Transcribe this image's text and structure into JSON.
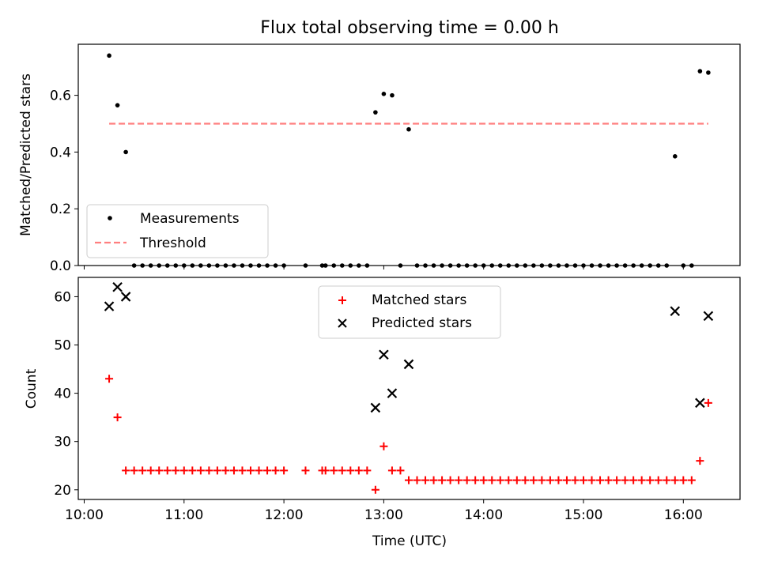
{
  "figure": {
    "title": "Flux total observing time = 0.00 h"
  },
  "x_ticks": [
    "10:00",
    "11:00",
    "12:00",
    "13:00",
    "14:00",
    "15:00",
    "16:00"
  ],
  "chart_data": [
    {
      "type": "scatter",
      "ylabel": "Matched/Predicted stars",
      "ylim": [
        0.0,
        0.78
      ],
      "yticks": [
        "0.0",
        "0.2",
        "0.4",
        "0.6"
      ],
      "legend": "lower-left",
      "series": [
        {
          "name": "Measurements",
          "marker": "dot",
          "color": "#000000",
          "points": [
            [
              "10:15",
              0.74
            ],
            [
              "10:20",
              0.565
            ],
            [
              "10:25",
              0.4
            ],
            [
              "10:30",
              0.0
            ],
            [
              "10:35",
              0.0
            ],
            [
              "10:40",
              0.0
            ],
            [
              "10:45",
              0.0
            ],
            [
              "10:50",
              0.0
            ],
            [
              "10:55",
              0.0
            ],
            [
              "11:00",
              0.0
            ],
            [
              "11:05",
              0.0
            ],
            [
              "11:10",
              0.0
            ],
            [
              "11:15",
              0.0
            ],
            [
              "11:20",
              0.0
            ],
            [
              "11:25",
              0.0
            ],
            [
              "11:30",
              0.0
            ],
            [
              "11:35",
              0.0
            ],
            [
              "11:40",
              0.0
            ],
            [
              "11:45",
              0.0
            ],
            [
              "11:50",
              0.0
            ],
            [
              "11:55",
              0.0
            ],
            [
              "12:00",
              0.0
            ],
            [
              "12:13",
              0.0
            ],
            [
              "12:23",
              0.0
            ],
            [
              "12:25",
              0.0
            ],
            [
              "12:30",
              0.0
            ],
            [
              "12:35",
              0.0
            ],
            [
              "12:40",
              0.0
            ],
            [
              "12:45",
              0.0
            ],
            [
              "12:50",
              0.0
            ],
            [
              "12:55",
              0.54
            ],
            [
              "13:00",
              0.605
            ],
            [
              "13:05",
              0.6
            ],
            [
              "13:10",
              0.0
            ],
            [
              "13:15",
              0.48
            ],
            [
              "13:20",
              0.0
            ],
            [
              "13:25",
              0.0
            ],
            [
              "13:30",
              0.0
            ],
            [
              "13:35",
              0.0
            ],
            [
              "13:40",
              0.0
            ],
            [
              "13:45",
              0.0
            ],
            [
              "13:50",
              0.0
            ],
            [
              "13:55",
              0.0
            ],
            [
              "14:00",
              0.0
            ],
            [
              "14:05",
              0.0
            ],
            [
              "14:10",
              0.0
            ],
            [
              "14:15",
              0.0
            ],
            [
              "14:20",
              0.0
            ],
            [
              "14:25",
              0.0
            ],
            [
              "14:30",
              0.0
            ],
            [
              "14:35",
              0.0
            ],
            [
              "14:40",
              0.0
            ],
            [
              "14:45",
              0.0
            ],
            [
              "14:50",
              0.0
            ],
            [
              "14:55",
              0.0
            ],
            [
              "15:00",
              0.0
            ],
            [
              "15:05",
              0.0
            ],
            [
              "15:10",
              0.0
            ],
            [
              "15:15",
              0.0
            ],
            [
              "15:20",
              0.0
            ],
            [
              "15:25",
              0.0
            ],
            [
              "15:30",
              0.0
            ],
            [
              "15:35",
              0.0
            ],
            [
              "15:40",
              0.0
            ],
            [
              "15:45",
              0.0
            ],
            [
              "15:50",
              0.0
            ],
            [
              "15:55",
              0.385
            ],
            [
              "16:00",
              0.0
            ],
            [
              "16:05",
              0.0
            ],
            [
              "16:10",
              0.685
            ],
            [
              "16:15",
              0.68
            ]
          ]
        },
        {
          "name": "Threshold",
          "marker": "dashed-line",
          "color": "#ff7f7f",
          "points": [
            [
              "10:15",
              0.5
            ],
            [
              "16:15",
              0.5
            ]
          ]
        }
      ]
    },
    {
      "type": "scatter",
      "ylabel": "Count",
      "xlabel": "Time (UTC)",
      "ylim": [
        18,
        64
      ],
      "yticks": [
        "20",
        "30",
        "40",
        "50",
        "60"
      ],
      "legend": "top-center",
      "series": [
        {
          "name": "Matched stars",
          "marker": "plus",
          "color": "#ff0000",
          "points": [
            [
              "10:15",
              43
            ],
            [
              "10:20",
              35
            ],
            [
              "10:25",
              24
            ],
            [
              "10:30",
              24
            ],
            [
              "10:35",
              24
            ],
            [
              "10:40",
              24
            ],
            [
              "10:45",
              24
            ],
            [
              "10:50",
              24
            ],
            [
              "10:55",
              24
            ],
            [
              "11:00",
              24
            ],
            [
              "11:05",
              24
            ],
            [
              "11:10",
              24
            ],
            [
              "11:15",
              24
            ],
            [
              "11:20",
              24
            ],
            [
              "11:25",
              24
            ],
            [
              "11:30",
              24
            ],
            [
              "11:35",
              24
            ],
            [
              "11:40",
              24
            ],
            [
              "11:45",
              24
            ],
            [
              "11:50",
              24
            ],
            [
              "11:55",
              24
            ],
            [
              "12:00",
              24
            ],
            [
              "12:13",
              24
            ],
            [
              "12:23",
              24
            ],
            [
              "12:25",
              24
            ],
            [
              "12:30",
              24
            ],
            [
              "12:35",
              24
            ],
            [
              "12:40",
              24
            ],
            [
              "12:45",
              24
            ],
            [
              "12:50",
              24
            ],
            [
              "12:55",
              20
            ],
            [
              "13:00",
              29
            ],
            [
              "13:05",
              24
            ],
            [
              "13:10",
              24
            ],
            [
              "13:15",
              22
            ],
            [
              "13:20",
              22
            ],
            [
              "13:25",
              22
            ],
            [
              "13:30",
              22
            ],
            [
              "13:35",
              22
            ],
            [
              "13:40",
              22
            ],
            [
              "13:45",
              22
            ],
            [
              "13:50",
              22
            ],
            [
              "13:55",
              22
            ],
            [
              "14:00",
              22
            ],
            [
              "14:05",
              22
            ],
            [
              "14:10",
              22
            ],
            [
              "14:15",
              22
            ],
            [
              "14:20",
              22
            ],
            [
              "14:25",
              22
            ],
            [
              "14:30",
              22
            ],
            [
              "14:35",
              22
            ],
            [
              "14:40",
              22
            ],
            [
              "14:45",
              22
            ],
            [
              "14:50",
              22
            ],
            [
              "14:55",
              22
            ],
            [
              "15:00",
              22
            ],
            [
              "15:05",
              22
            ],
            [
              "15:10",
              22
            ],
            [
              "15:15",
              22
            ],
            [
              "15:20",
              22
            ],
            [
              "15:25",
              22
            ],
            [
              "15:30",
              22
            ],
            [
              "15:35",
              22
            ],
            [
              "15:40",
              22
            ],
            [
              "15:45",
              22
            ],
            [
              "15:50",
              22
            ],
            [
              "15:55",
              22
            ],
            [
              "16:00",
              22
            ],
            [
              "16:05",
              22
            ],
            [
              "16:10",
              26
            ],
            [
              "16:15",
              38
            ]
          ]
        },
        {
          "name": "Predicted stars",
          "marker": "x",
          "color": "#000000",
          "points": [
            [
              "10:15",
              58
            ],
            [
              "10:20",
              62
            ],
            [
              "10:25",
              60
            ],
            [
              "12:55",
              37
            ],
            [
              "13:00",
              48
            ],
            [
              "13:05",
              40
            ],
            [
              "13:15",
              46
            ],
            [
              "15:55",
              57
            ],
            [
              "16:10",
              38
            ],
            [
              "16:15",
              56
            ]
          ]
        }
      ]
    }
  ]
}
